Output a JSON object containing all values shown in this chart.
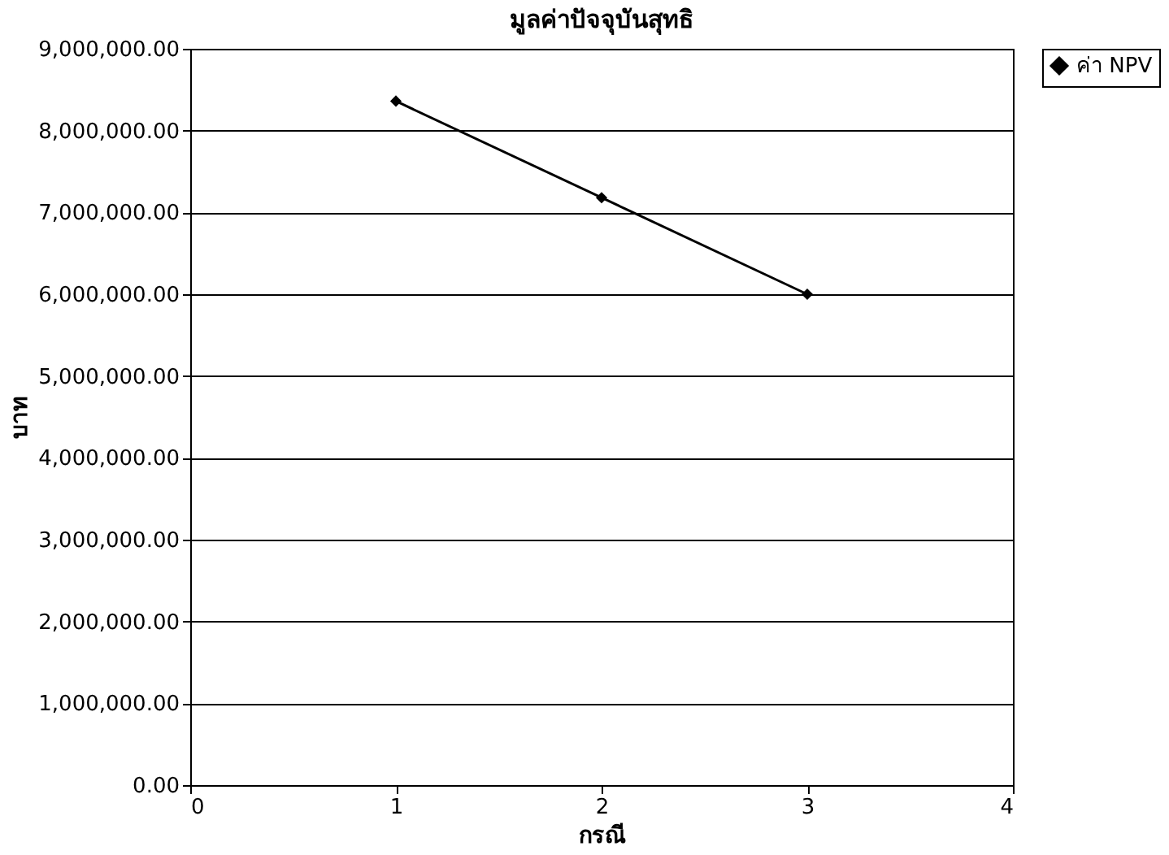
{
  "chart_data": {
    "type": "line",
    "title": "มูลค่าปัจจุบันสุทธิ",
    "xlabel": "กรณี",
    "ylabel": "บาท",
    "x": [
      1,
      2,
      3
    ],
    "series": [
      {
        "name": "ค่า NPV",
        "color": "#000000",
        "values": [
          8360000,
          7180000,
          6000000
        ]
      }
    ],
    "xlim": [
      0,
      4
    ],
    "xticks": [
      0,
      1,
      2,
      3,
      4
    ],
    "ylim": [
      0,
      9000000
    ],
    "yticks": [
      {
        "value": 0,
        "label": "0.00"
      },
      {
        "value": 1000000,
        "label": "1,000,000.00"
      },
      {
        "value": 2000000,
        "label": "2,000,000.00"
      },
      {
        "value": 3000000,
        "label": "3,000,000.00"
      },
      {
        "value": 4000000,
        "label": "4,000,000.00"
      },
      {
        "value": 5000000,
        "label": "5,000,000.00"
      },
      {
        "value": 6000000,
        "label": "6,000,000.00"
      },
      {
        "value": 7000000,
        "label": "7,000,000.00"
      },
      {
        "value": 8000000,
        "label": "8,000,000.00"
      },
      {
        "value": 9000000,
        "label": "9,000,000.00"
      }
    ],
    "grid": "y",
    "legend": "right",
    "marker": "diamond",
    "line_style": "solid"
  }
}
